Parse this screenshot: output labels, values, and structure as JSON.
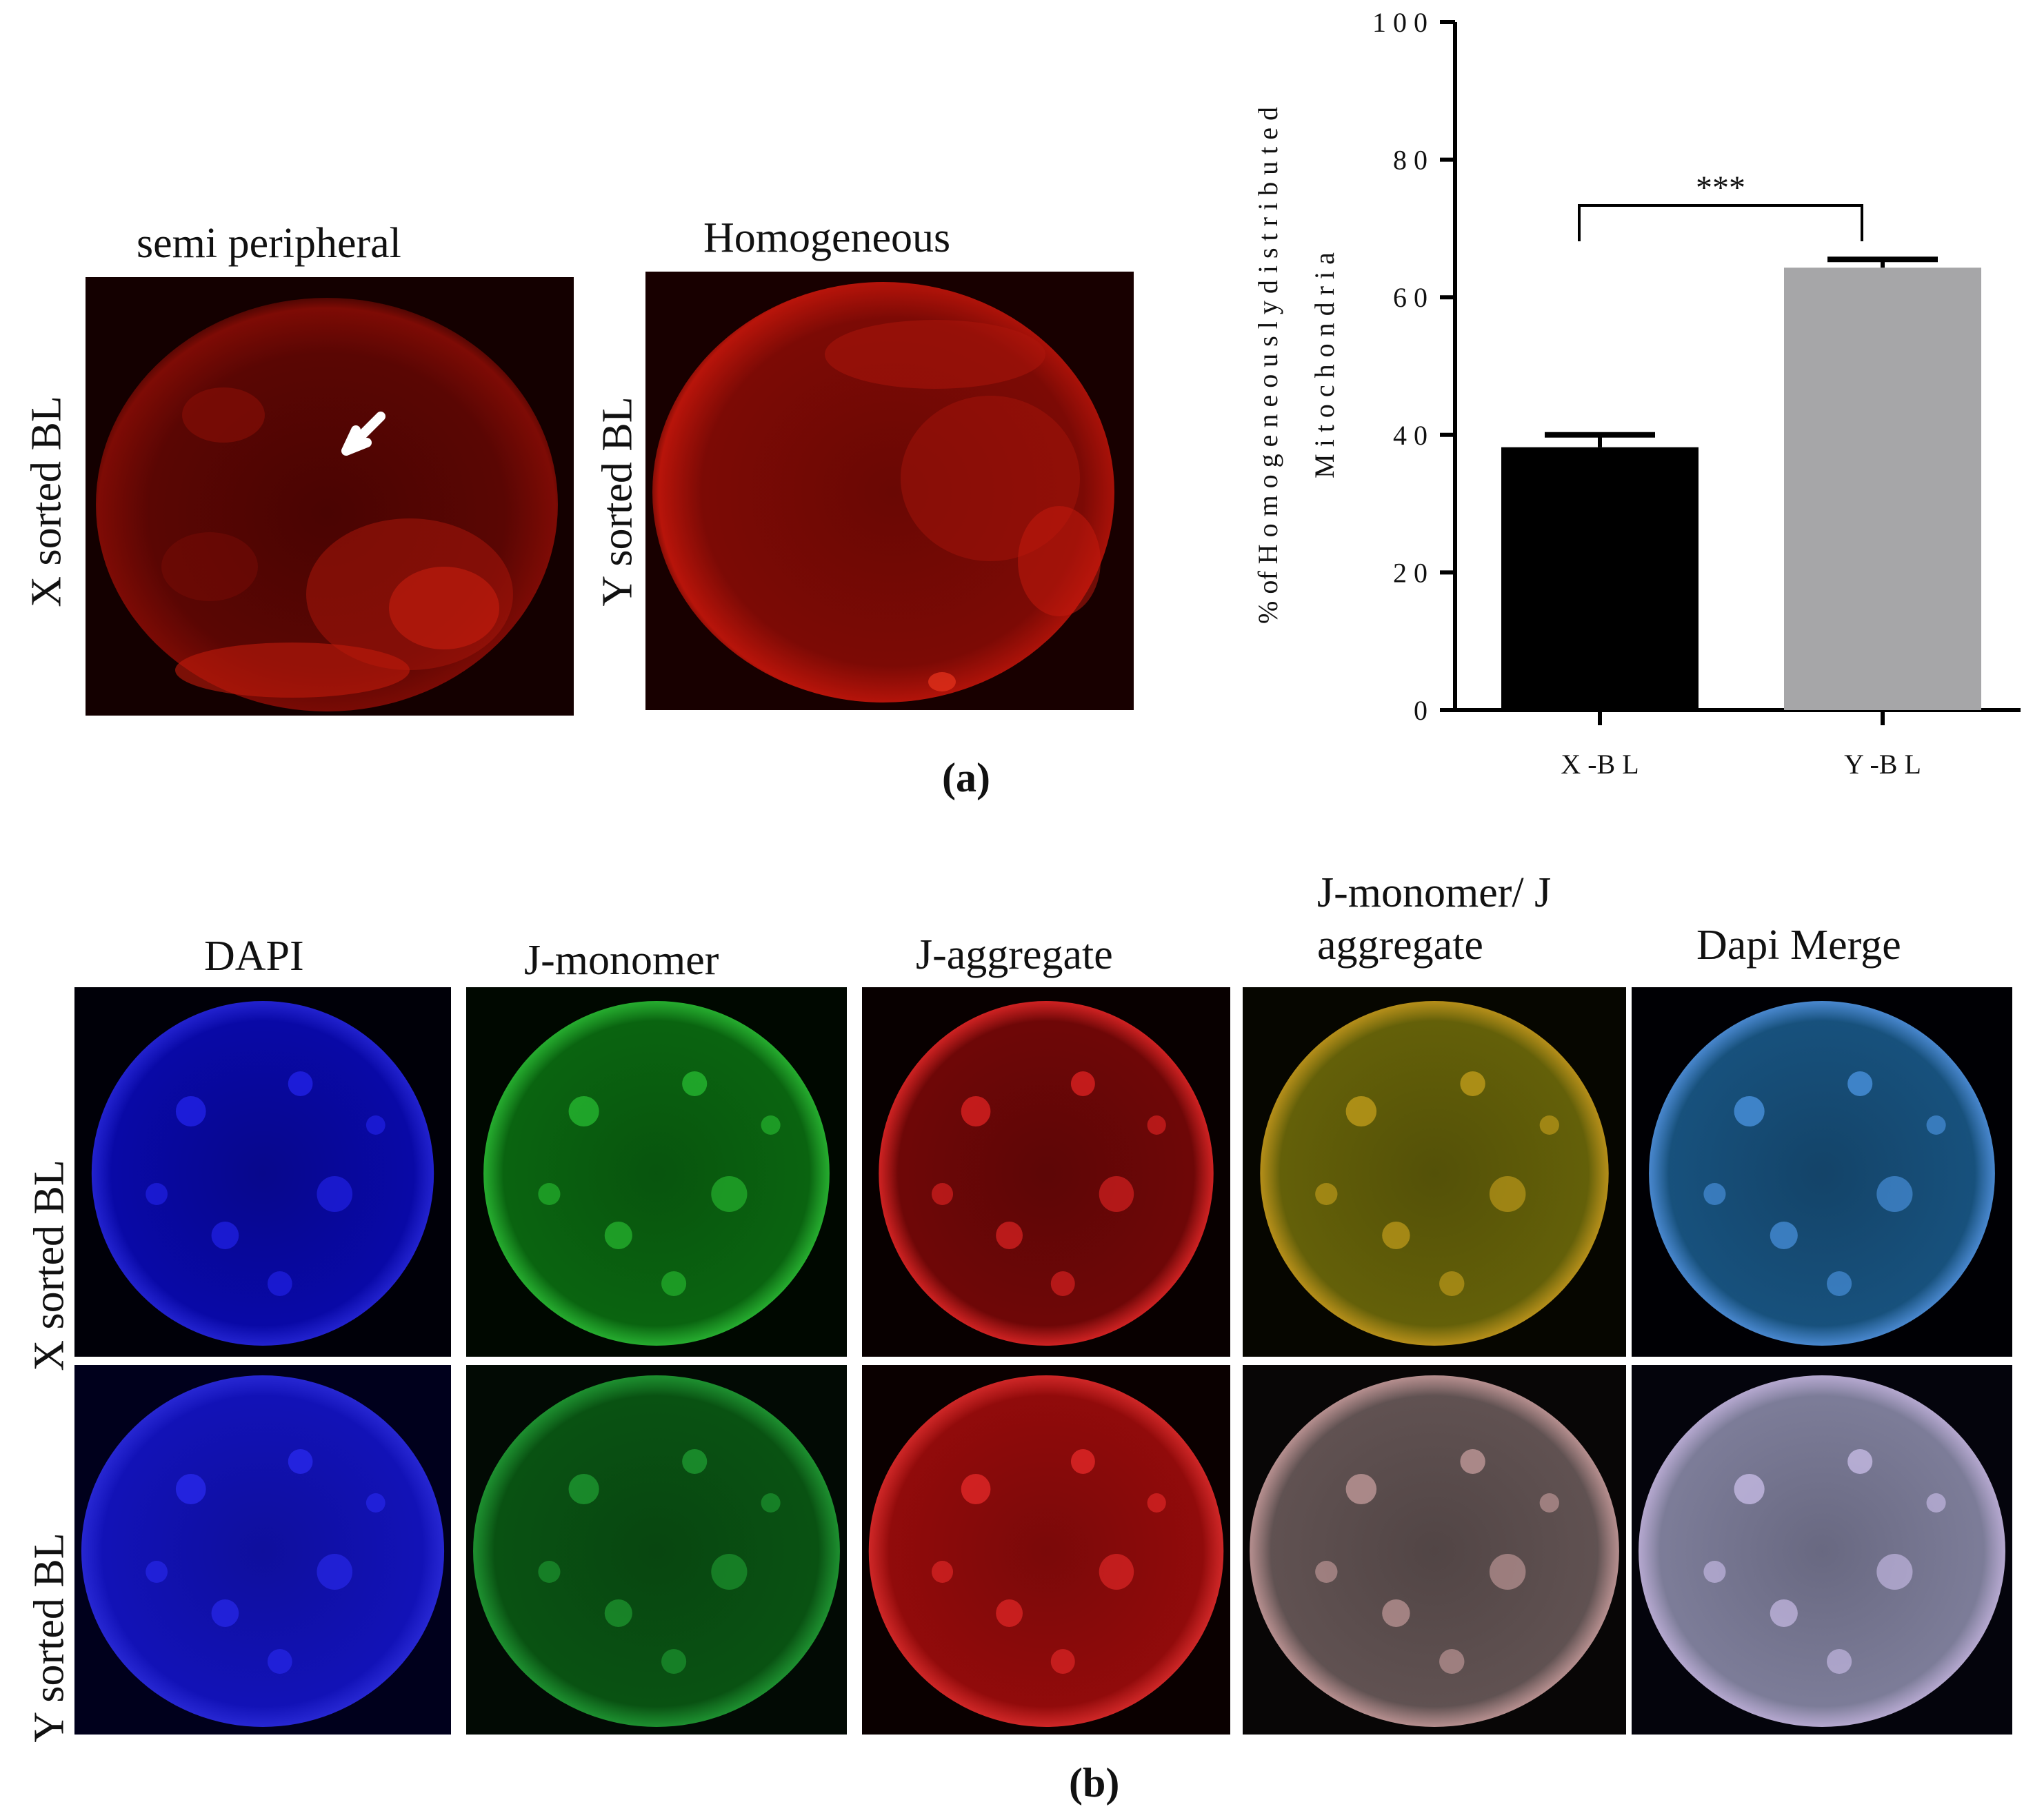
{
  "panel_a": {
    "label": "(a)",
    "images": [
      {
        "title": "semi peripheral",
        "row_label": "X sorted BL"
      },
      {
        "title": "Homogeneous",
        "row_label": "Y sorted BL"
      }
    ]
  },
  "panel_b": {
    "label": "(b)",
    "columns": [
      "DAPI",
      "J-monomer",
      "J-aggregate",
      "J-monomer/ J",
      "aggregate",
      "Dapi Merge"
    ],
    "rows": [
      "X sorted BL",
      "Y sorted BL"
    ]
  },
  "chart_data": {
    "type": "bar",
    "categories": [
      "X -B L",
      "Y -B L"
    ],
    "values": [
      38.2,
      64.3
    ],
    "errors": [
      1.8,
      1.2
    ],
    "ylim": [
      0,
      100
    ],
    "yticks": [
      "0",
      "2 0",
      "4 0",
      "6 0",
      "8 0",
      "1 0 0"
    ],
    "ylabel_line1": "% of H o m o g e n e o u s l y d i s t r i b u t e d",
    "ylabel_line2": "M i t o c h o n d r i a",
    "significance": "***",
    "colors": [
      "#000000",
      "#a6a6a8"
    ]
  }
}
